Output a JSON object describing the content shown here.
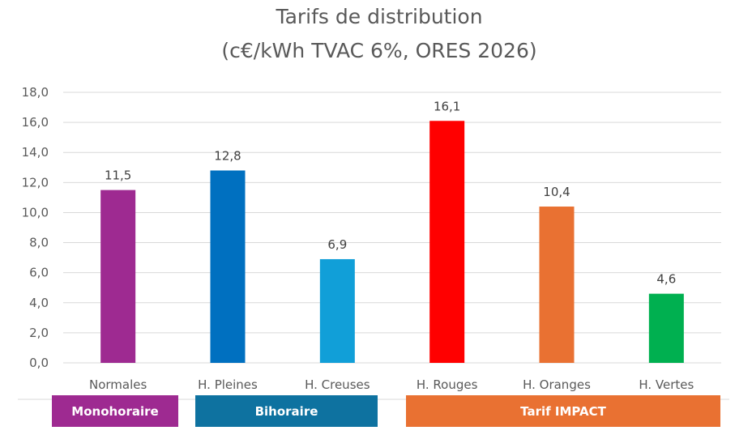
{
  "chart_data": {
    "type": "bar",
    "title": "Tarifs de distribution",
    "subtitle": "(c€/kWh TVAC 6%, ORES 2026)",
    "xlabel": "",
    "ylabel": "",
    "ylim": [
      0,
      18
    ],
    "yticks": [
      "0,0",
      "2,0",
      "4,0",
      "6,0",
      "8,0",
      "10,0",
      "12,0",
      "14,0",
      "16,0",
      "18,0"
    ],
    "ytick_values": [
      0,
      2,
      4,
      6,
      8,
      10,
      12,
      14,
      16,
      18
    ],
    "grid": true,
    "categories": [
      "Normales",
      "H. Pleines",
      "H. Creuses",
      "H. Rouges",
      "H. Oranges",
      "H. Vertes"
    ],
    "values": [
      11.5,
      12.8,
      6.9,
      16.1,
      10.4,
      4.6
    ],
    "data_labels": [
      "11,5",
      "12,8",
      "6,9",
      "16,1",
      "10,4",
      "4,6"
    ],
    "bar_colors": [
      "#9E2A91",
      "#0070C0",
      "#119FD8",
      "#FF0000",
      "#E97132",
      "#00B050"
    ],
    "groups": [
      {
        "label": "Monohoraire",
        "categories": [
          "Normales"
        ],
        "color": "#9E2A91"
      },
      {
        "label": "Bihoraire",
        "categories": [
          "H. Pleines",
          "H. Creuses"
        ],
        "color": "#0E72A0"
      },
      {
        "label": "Tarif IMPACT",
        "categories": [
          "H. Rouges",
          "H. Oranges",
          "H. Vertes"
        ],
        "color": "#E97132"
      }
    ]
  },
  "colors": {
    "gridline": "#D9D9D9",
    "text": "#595959"
  }
}
